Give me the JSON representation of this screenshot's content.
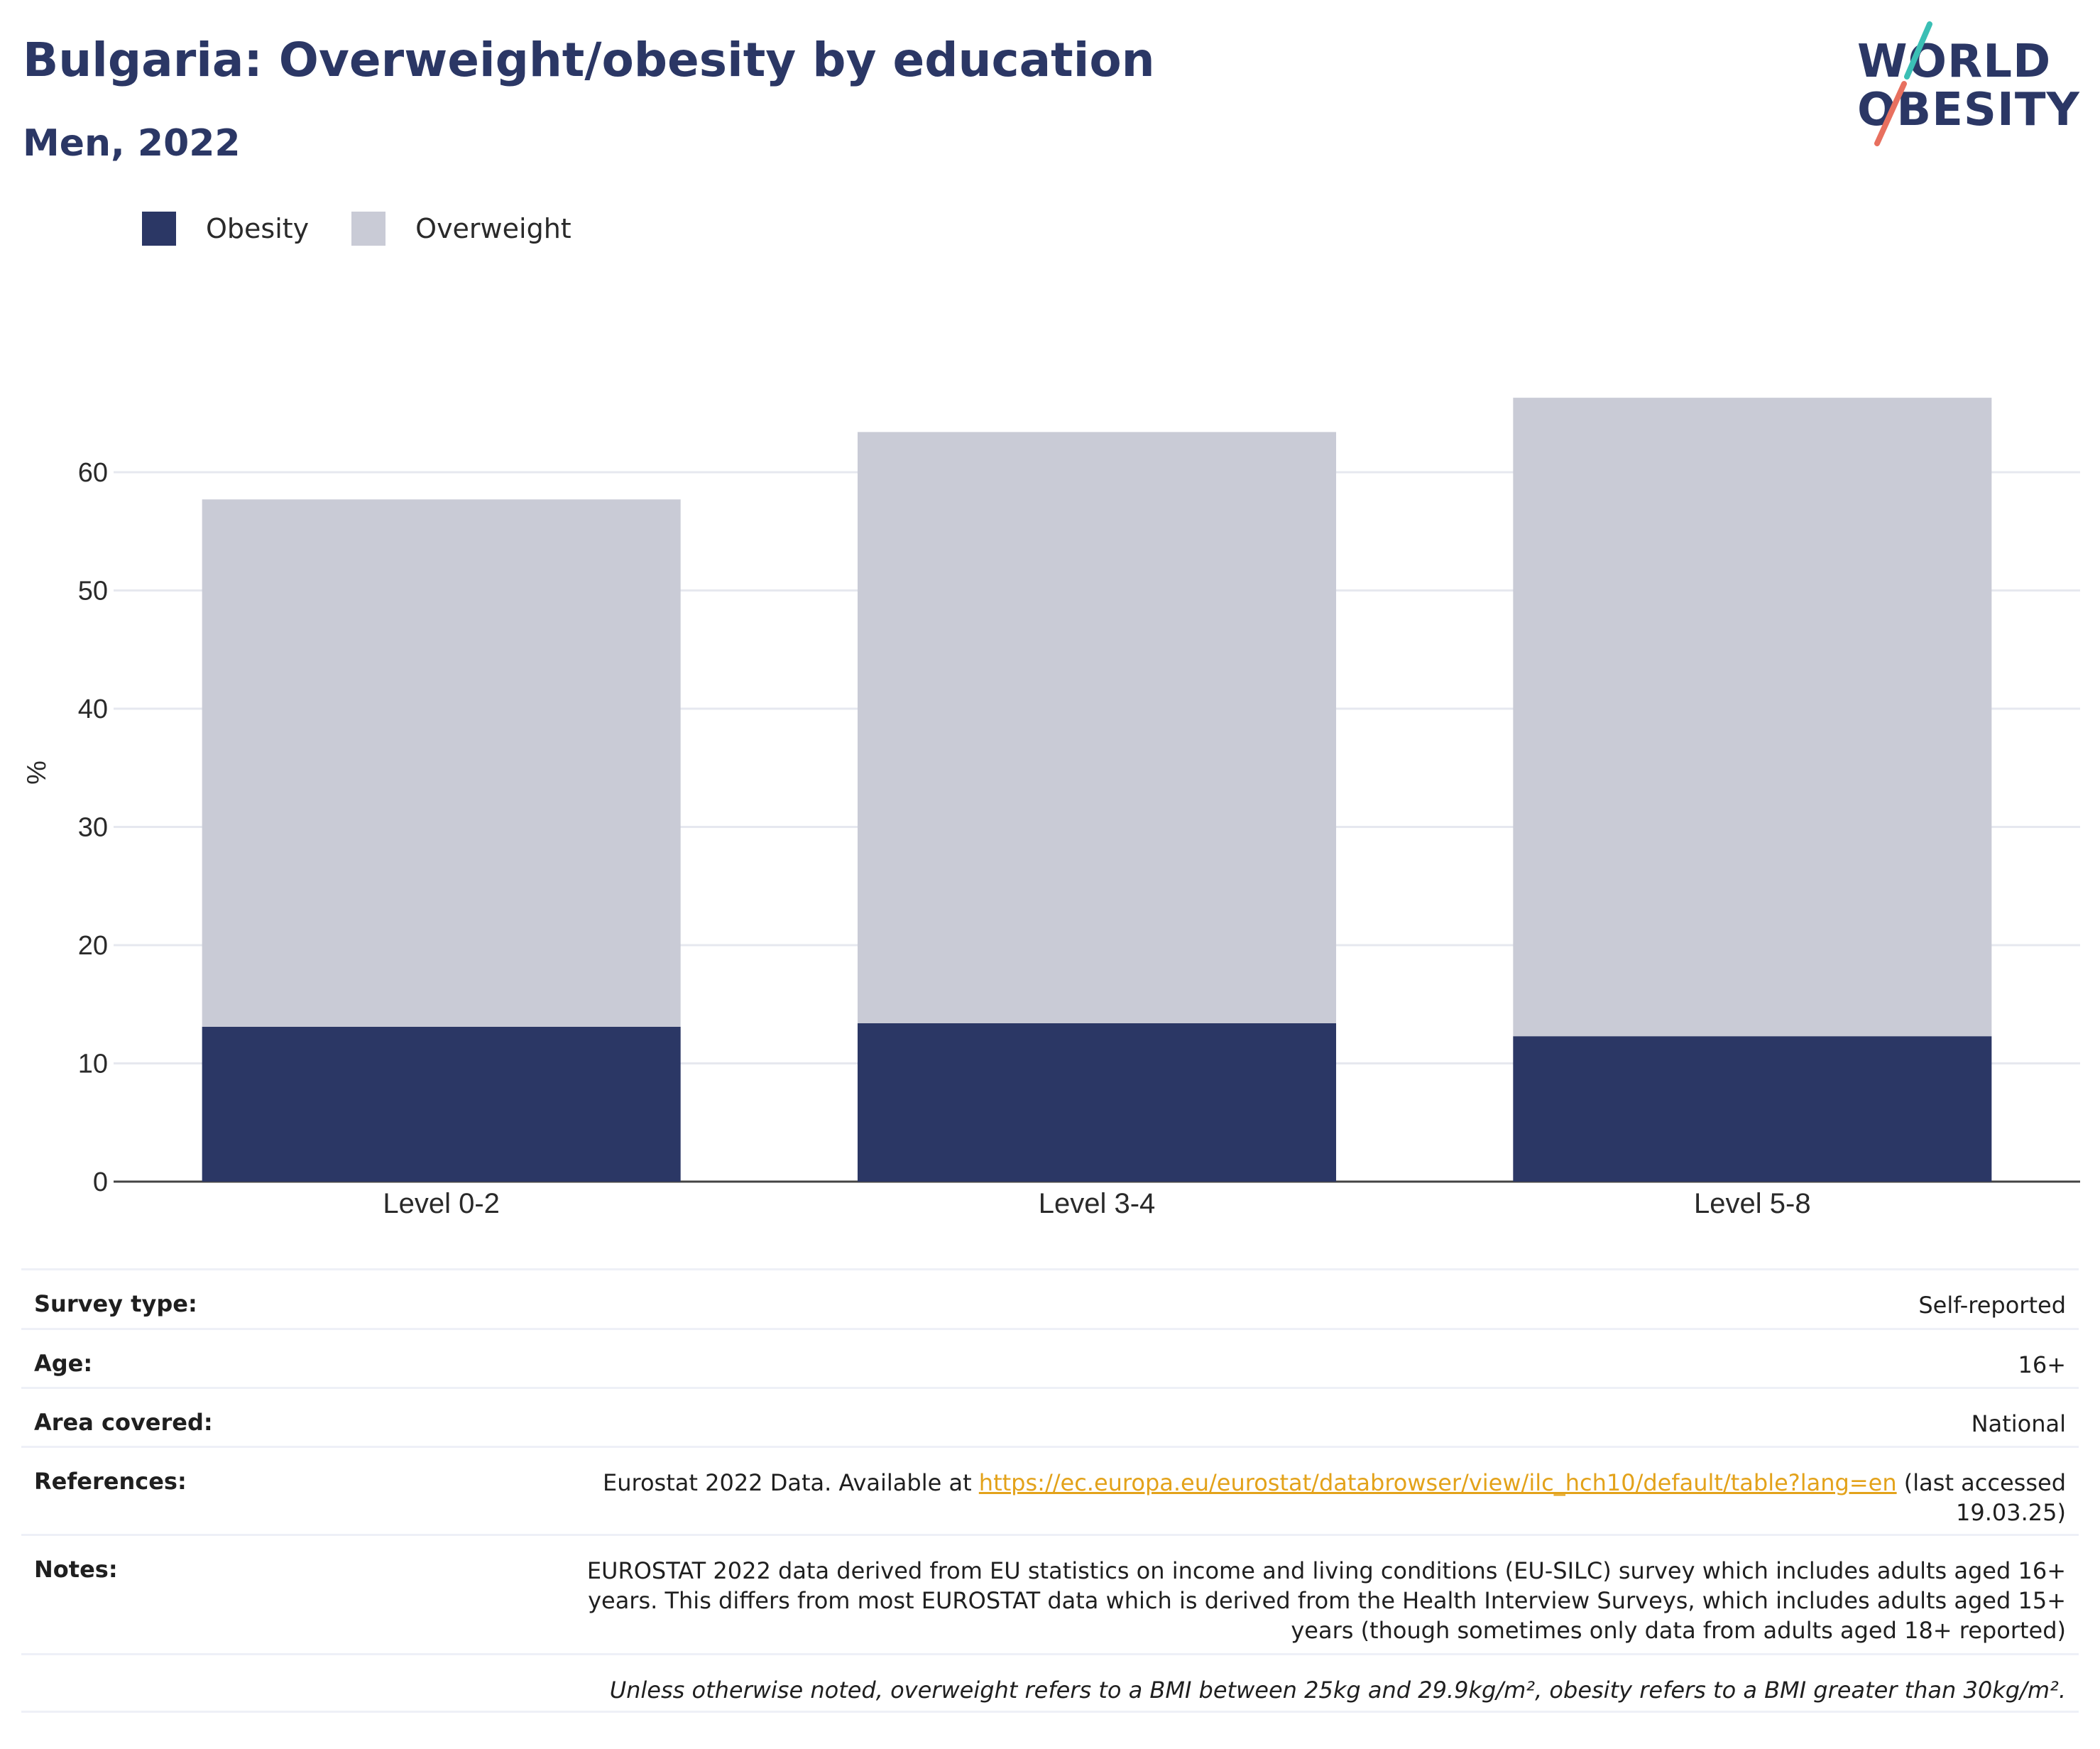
{
  "header": {
    "title": "Bulgaria: Overweight/obesity by education",
    "subtitle": "Men, 2022"
  },
  "logo": {
    "line1": "WORLD",
    "line2": "OBESITY",
    "colors": {
      "text": "#2b3765",
      "slash_top": "#3bbfb5",
      "slash_bottom": "#e8705f"
    }
  },
  "legend": {
    "items": [
      {
        "label": "Obesity",
        "color": "#2b3765"
      },
      {
        "label": "Overweight",
        "color": "#c9cbd6"
      }
    ]
  },
  "chart_data": {
    "type": "bar",
    "stacked": true,
    "categories": [
      "Level 0-2",
      "Level 3-4",
      "Level 5-8"
    ],
    "series": [
      {
        "name": "Obesity",
        "color": "#2b3765",
        "values": [
          13.1,
          13.4,
          12.3
        ]
      },
      {
        "name": "Overweight",
        "color": "#c9cbd6",
        "values": [
          44.6,
          50.0,
          54.0
        ]
      }
    ],
    "ylabel": "%",
    "ylim": [
      0,
      70
    ],
    "yticks": [
      0,
      10,
      20,
      30,
      40,
      50,
      60
    ],
    "grid": true
  },
  "info": {
    "survey_type": {
      "label": "Survey type:",
      "value": "Self-reported"
    },
    "age": {
      "label": "Age:",
      "value": "16+"
    },
    "area": {
      "label": "Area covered:",
      "value": "National"
    },
    "references": {
      "label": "References:",
      "prefix": "Eurostat 2022 Data. Available at ",
      "link": "https://ec.europa.eu/eurostat/databrowser/view/ilc_hch10/default/table?lang=en",
      "suffix": " (last accessed 19.03.25)"
    },
    "notes": {
      "label": "Notes:",
      "value": "EUROSTAT 2022 data derived from EU statistics on income and living conditions (EU-SILC) survey which includes adults aged 16+ years. This differs from most EUROSTAT data which is derived from the Health Interview Surveys, which includes adults aged 15+ years (though sometimes only data from adults aged 18+ reported)"
    },
    "footnote": "Unless otherwise noted, overweight refers to a BMI between 25kg and 29.9kg/m², obesity refers to a BMI greater than 30kg/m²."
  }
}
